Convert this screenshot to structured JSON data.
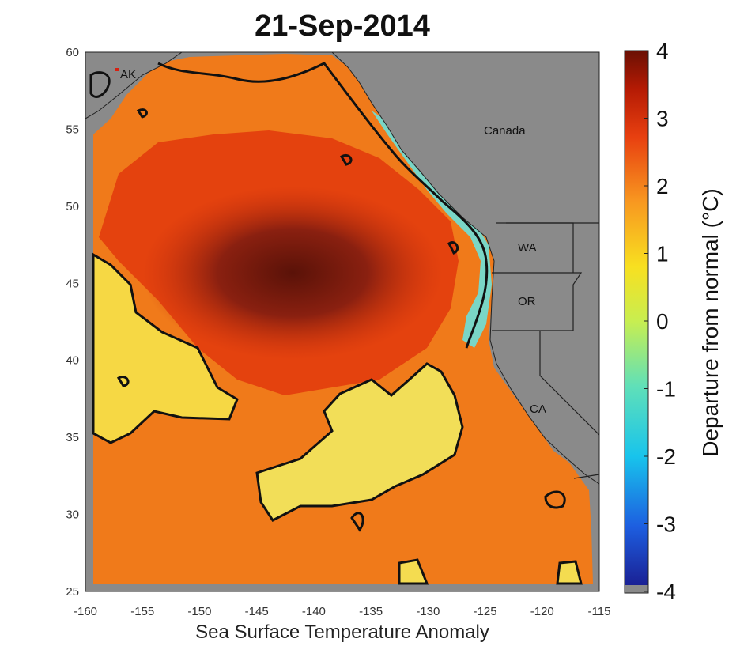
{
  "title": "21-Sep-2014",
  "xlabel": "Sea Surface Temperature Anomaly",
  "colorbar": {
    "label": "Departure from normal (°C)",
    "range": [
      -4,
      4
    ],
    "ticks": [
      "4",
      "3",
      "2",
      "1",
      "0",
      "-1",
      "-2",
      "-3",
      "-4"
    ],
    "colors": [
      "#2a2aa0",
      "#1d6fe0",
      "#1ec0e8",
      "#5fe0b0",
      "#e8f060",
      "#f8d020",
      "#f89020",
      "#e84010",
      "#b81800",
      "#6a1000"
    ],
    "land_color": "#8a8a8a"
  },
  "axes": {
    "x_ticks": [
      "-160",
      "-155",
      "-150",
      "-145",
      "-140",
      "-135",
      "-130",
      "-125",
      "-120",
      "-115"
    ],
    "y_ticks": [
      "60",
      "55",
      "50",
      "45",
      "40",
      "35",
      "30",
      "25"
    ],
    "x_range": [
      -160,
      -115
    ],
    "y_range": [
      25,
      60
    ]
  },
  "places": {
    "ak": "AK",
    "canada": "Canada",
    "wa": "WA",
    "or": "OR",
    "ca": "CA"
  },
  "colors": {
    "warm_core": "#6e1a10",
    "warm": "#e0400e",
    "mid": "#f08a1c",
    "mild": "#f4d64a",
    "cool": "#6fd8c0",
    "land": "#8a8a8a",
    "contour": "#111111"
  }
}
